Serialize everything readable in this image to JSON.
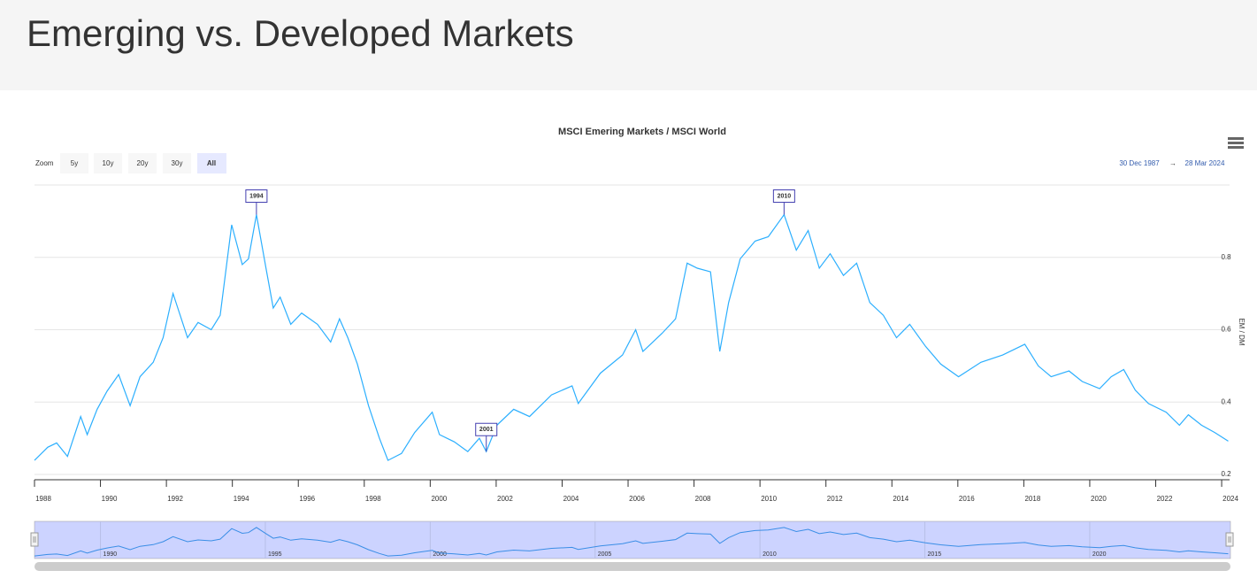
{
  "page": {
    "title": "Emerging vs. Developed Markets"
  },
  "range_selector": {
    "label": "Zoom",
    "buttons": [
      "5y",
      "10y",
      "20y",
      "30y",
      "All"
    ],
    "selected": 4,
    "from": "30 Dec 1987",
    "arrow": "→",
    "to": "28 Mar 2024"
  },
  "chart_data": {
    "type": "line",
    "title": "MSCI Emering Markets / MSCI World",
    "y_axis_title": "EM / DM",
    "color": "#2caffe",
    "x": [
      1988.0,
      1988.4,
      1988.67,
      1989.0,
      1989.4,
      1989.6,
      1989.9,
      1990.2,
      1990.55,
      1990.9,
      1991.2,
      1991.6,
      1991.9,
      1992.2,
      1992.64,
      1992.96,
      1993.36,
      1993.63,
      1993.98,
      1994.3,
      1994.49,
      1994.73,
      1995.02,
      1995.24,
      1995.45,
      1995.77,
      1996.1,
      1996.58,
      1996.98,
      1997.25,
      1997.5,
      1997.79,
      1998.13,
      1998.46,
      1998.72,
      1999.13,
      1999.53,
      2000.06,
      2000.28,
      2000.73,
      2001.14,
      2001.49,
      2001.7,
      2002.02,
      2002.53,
      2003.01,
      2003.68,
      2004.3,
      2004.49,
      2005.16,
      2005.83,
      2006.23,
      2006.45,
      2007.03,
      2007.44,
      2007.79,
      2008.1,
      2008.5,
      2008.78,
      2009.05,
      2009.4,
      2009.85,
      2010.25,
      2010.73,
      2011.1,
      2011.46,
      2011.8,
      2012.13,
      2012.53,
      2012.93,
      2013.33,
      2013.74,
      2014.14,
      2014.54,
      2015.02,
      2015.48,
      2016.02,
      2016.7,
      2017.36,
      2018.03,
      2018.44,
      2018.83,
      2019.37,
      2019.77,
      2020.3,
      2020.65,
      2021.03,
      2021.38,
      2021.78,
      2022.32,
      2022.72,
      2022.99,
      2023.39,
      2023.79,
      2024.2
    ],
    "values": [
      0.239,
      0.275,
      0.287,
      0.25,
      0.36,
      0.31,
      0.38,
      0.43,
      0.476,
      0.39,
      0.47,
      0.51,
      0.578,
      0.7,
      0.578,
      0.62,
      0.6,
      0.64,
      0.89,
      0.78,
      0.796,
      0.918,
      0.77,
      0.66,
      0.69,
      0.615,
      0.646,
      0.615,
      0.566,
      0.63,
      0.578,
      0.505,
      0.39,
      0.3,
      0.239,
      0.258,
      0.316,
      0.372,
      0.31,
      0.29,
      0.263,
      0.3,
      0.263,
      0.336,
      0.38,
      0.36,
      0.42,
      0.445,
      0.396,
      0.48,
      0.53,
      0.6,
      0.54,
      0.59,
      0.63,
      0.784,
      0.77,
      0.76,
      0.54,
      0.675,
      0.796,
      0.845,
      0.857,
      0.918,
      0.82,
      0.874,
      0.77,
      0.81,
      0.75,
      0.784,
      0.675,
      0.64,
      0.578,
      0.615,
      0.554,
      0.505,
      0.47,
      0.51,
      0.53,
      0.56,
      0.5,
      0.47,
      0.486,
      0.457,
      0.437,
      0.47,
      0.49,
      0.433,
      0.396,
      0.372,
      0.336,
      0.365,
      0.336,
      0.316,
      0.292
    ],
    "xlim": [
      1988.0,
      2024.24
    ],
    "ylim": [
      0.2,
      1.0
    ],
    "xticks": [
      1988,
      1990,
      1992,
      1994,
      1996,
      1998,
      2000,
      2002,
      2004,
      2006,
      2008,
      2010,
      2012,
      2014,
      2016,
      2018,
      2020,
      2022,
      2024
    ],
    "yticks": [
      0.2,
      0.4,
      0.6,
      0.8
    ],
    "navigator_xticks": [
      1990,
      1995,
      2000,
      2005,
      2010,
      2015,
      2020
    ],
    "grid": true,
    "flags": [
      {
        "x": 1994.73,
        "y": 0.918,
        "label": "1994"
      },
      {
        "x": 2001.7,
        "y": 0.263,
        "label": "2001"
      },
      {
        "x": 2010.73,
        "y": 0.918,
        "label": "2010"
      }
    ]
  }
}
